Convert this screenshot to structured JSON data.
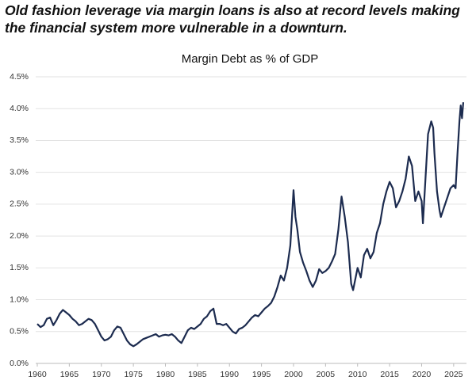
{
  "headline": "Old fashion leverage via margin loans is also at record levels making the financial system more vulnerable in a downturn.",
  "chart_data": {
    "type": "line",
    "title": "Margin Debt as % of GDP",
    "color": "#1c2b4f",
    "grid": true,
    "xlim": [
      1960,
      2027
    ],
    "ylim": [
      0,
      4.5
    ],
    "xticks": [
      1960,
      1965,
      1970,
      1975,
      1980,
      1985,
      1990,
      1995,
      2000,
      2005,
      2010,
      2015,
      2020,
      2025
    ],
    "yticks": [
      {
        "value": 0,
        "label": "0.0%"
      },
      {
        "value": 0.5,
        "label": "0.5%"
      },
      {
        "value": 1,
        "label": "1.0%"
      },
      {
        "value": 1.5,
        "label": "1.5%"
      },
      {
        "value": 2,
        "label": "2.0%"
      },
      {
        "value": 2.5,
        "label": "2.5%"
      },
      {
        "value": 3,
        "label": "3.0%"
      },
      {
        "value": 3.5,
        "label": "3.5%"
      },
      {
        "value": 4,
        "label": "4.0%"
      },
      {
        "value": 4.5,
        "label": "4.5%"
      }
    ],
    "x": [
      1960,
      1960.5,
      1961,
      1961.5,
      1962,
      1962.5,
      1963,
      1963.5,
      1964,
      1964.5,
      1965,
      1965.5,
      1966,
      1966.5,
      1967,
      1967.5,
      1968,
      1968.5,
      1969,
      1969.5,
      1970,
      1970.5,
      1971,
      1971.5,
      1972,
      1972.5,
      1973,
      1973.5,
      1974,
      1974.5,
      1975,
      1975.5,
      1976,
      1976.5,
      1977,
      1977.5,
      1978,
      1978.5,
      1979,
      1979.5,
      1980,
      1980.5,
      1981,
      1981.5,
      1982,
      1982.5,
      1983,
      1983.5,
      1984,
      1984.5,
      1985,
      1985.5,
      1986,
      1986.5,
      1987,
      1987.5,
      1988,
      1988.5,
      1989,
      1989.5,
      1990,
      1990.5,
      1991,
      1991.5,
      1992,
      1992.5,
      1993,
      1993.5,
      1994,
      1994.5,
      1995,
      1995.5,
      1996,
      1996.5,
      1997,
      1997.5,
      1998,
      1998.5,
      1999,
      1999.5,
      2000,
      2000.3,
      2000.6,
      2001,
      2001.5,
      2002,
      2002.5,
      2003,
      2003.5,
      2004,
      2004.5,
      2005,
      2005.5,
      2006,
      2006.5,
      2007,
      2007.5,
      2008,
      2008.5,
      2009,
      2009.3,
      2009.7,
      2010,
      2010.5,
      2011,
      2011.5,
      2012,
      2012.5,
      2013,
      2013.5,
      2014,
      2014.5,
      2015,
      2015.5,
      2016,
      2016.5,
      2017,
      2017.5,
      2018,
      2018.5,
      2019,
      2019.5,
      2020,
      2020.2,
      2020.6,
      2021,
      2021.5,
      2021.8,
      2022,
      2022.4,
      2022.8,
      2023,
      2023.5,
      2024,
      2024.5,
      2025,
      2025.3,
      2025.6,
      2025.9,
      2026.1,
      2026.3,
      2026.5
    ],
    "values": [
      0.62,
      0.57,
      0.6,
      0.7,
      0.72,
      0.6,
      0.68,
      0.78,
      0.84,
      0.8,
      0.76,
      0.7,
      0.66,
      0.6,
      0.62,
      0.66,
      0.7,
      0.68,
      0.62,
      0.52,
      0.42,
      0.36,
      0.38,
      0.42,
      0.52,
      0.58,
      0.56,
      0.46,
      0.36,
      0.3,
      0.27,
      0.3,
      0.34,
      0.38,
      0.4,
      0.42,
      0.44,
      0.46,
      0.42,
      0.44,
      0.45,
      0.44,
      0.46,
      0.42,
      0.36,
      0.32,
      0.42,
      0.52,
      0.56,
      0.54,
      0.58,
      0.62,
      0.7,
      0.74,
      0.82,
      0.86,
      0.62,
      0.62,
      0.6,
      0.62,
      0.56,
      0.5,
      0.47,
      0.54,
      0.56,
      0.6,
      0.66,
      0.72,
      0.76,
      0.74,
      0.8,
      0.86,
      0.9,
      0.95,
      1.05,
      1.2,
      1.38,
      1.3,
      1.5,
      1.85,
      2.72,
      2.3,
      2.1,
      1.75,
      1.58,
      1.45,
      1.3,
      1.2,
      1.3,
      1.48,
      1.42,
      1.45,
      1.5,
      1.6,
      1.72,
      2.1,
      2.62,
      2.3,
      1.9,
      1.25,
      1.15,
      1.35,
      1.5,
      1.35,
      1.7,
      1.8,
      1.65,
      1.75,
      2.05,
      2.2,
      2.5,
      2.7,
      2.85,
      2.75,
      2.45,
      2.55,
      2.7,
      2.9,
      3.25,
      3.1,
      2.55,
      2.7,
      2.55,
      2.2,
      2.9,
      3.6,
      3.8,
      3.7,
      3.3,
      2.7,
      2.4,
      2.3,
      2.45,
      2.6,
      2.75,
      2.8,
      2.75,
      3.3,
      3.8,
      4.05,
      3.85,
      4.1
    ]
  }
}
